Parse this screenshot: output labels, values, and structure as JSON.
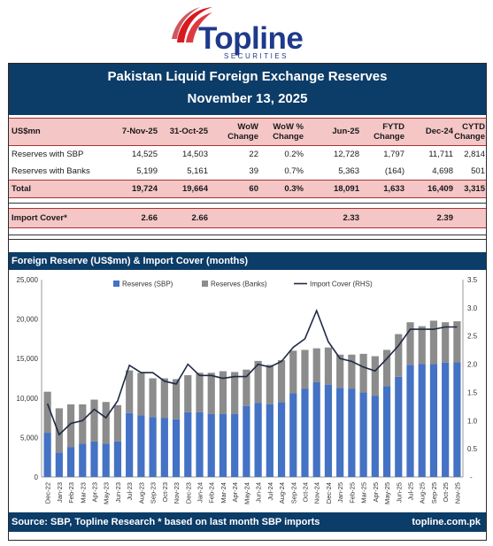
{
  "brand": {
    "name": "Topline",
    "tagline": "SECURITIES"
  },
  "report": {
    "title": "Pakistan Liquid Foreign Exchange Reserves",
    "date": "November 13, 2025"
  },
  "table": {
    "headers": [
      [
        "US$mn"
      ],
      [
        "7-Nov-25"
      ],
      [
        "31-Oct-25"
      ],
      [
        "WoW",
        "Change"
      ],
      [
        "WoW %",
        "Change"
      ],
      [
        "Jun-25"
      ],
      [
        "FYTD",
        "Change"
      ],
      [
        "Dec-24"
      ],
      [
        "CYTD",
        "Change"
      ]
    ],
    "rows": [
      [
        "Reserves with SBP",
        "14,525",
        "14,503",
        "22",
        "0.2%",
        "12,728",
        "1,797",
        "11,711",
        "2,814"
      ],
      [
        "Reserves with Banks",
        "5,199",
        "5,161",
        "39",
        "0.7%",
        "5,363",
        "(164)",
        "4,698",
        "501"
      ],
      [
        "Total",
        "19,724",
        "19,664",
        "60",
        "0.3%",
        "18,091",
        "1,633",
        "16,409",
        "3,315"
      ]
    ],
    "import_cover": [
      "Import Cover*",
      "2.66",
      "2.66",
      "",
      "",
      "2.33",
      "",
      "2.39",
      ""
    ]
  },
  "chart_header": "Foreign Reserve (US$mn) & Import Cover (months)",
  "footer": {
    "source": "Source: SBP, Topline Research * based on last month SBP imports",
    "site": "topline.com.pk"
  },
  "colors": {
    "navy": "#0c3c68",
    "pink": "#f5c6c6",
    "sbp": "#4472c4",
    "banks": "#8c8c8c",
    "line": "#1f2a44"
  },
  "chart_data": {
    "type": "bar",
    "stacked": true,
    "categories": [
      "Dec-22",
      "Jan-23",
      "Feb-23",
      "Mar-23",
      "Apr-23",
      "May-23",
      "Jun-23",
      "Jul-23",
      "Aug-23",
      "Sep-23",
      "Oct-23",
      "Nov-23",
      "Dec-23",
      "Jan-24",
      "Feb-24",
      "Mar-24",
      "Apr-24",
      "May-24",
      "Jun-24",
      "Jul-24",
      "Aug-24",
      "Sep-24",
      "Oct-24",
      "Nov-24",
      "Dec-24",
      "Jan-25",
      "Feb-25",
      "Mar-25",
      "Apr-25",
      "May-25",
      "Jun-25",
      "Jul-25",
      "Aug-25",
      "Sep-25",
      "Oct-25",
      "Nov-25"
    ],
    "tick_labels": [
      "Dec-22",
      "Jan-23",
      "Feb-23",
      "Mar-23",
      "Apr-23",
      "May-23",
      "Jun-23",
      "Jul-23",
      "Aug-23",
      "Sep-23",
      "Oct-23",
      "Nov-23",
      "Dec-23",
      "Jan-24",
      "Feb-24",
      "Mar-24",
      "Apr-24",
      "May-24",
      "Jun-24",
      "Jul-24",
      "Aug-24",
      "Sep-24",
      "Oct-24",
      "Nov-24",
      "Dec-24",
      "Jan-25",
      "Feb-25",
      "Mar-25",
      "Apr-25",
      "May-25",
      "Jun-25",
      "Jul-25",
      "Aug-25",
      "Sep-25",
      "Oct-25",
      "Nov-25"
    ],
    "series": [
      {
        "name": "Reserves (SBP)",
        "kind": "bar",
        "axis": "left",
        "values": [
          5600,
          3100,
          3800,
          4200,
          4500,
          4200,
          4500,
          8100,
          7800,
          7600,
          7500,
          7300,
          8200,
          8200,
          8000,
          8000,
          8000,
          9000,
          9400,
          9200,
          9500,
          10600,
          11200,
          12000,
          11700,
          11300,
          11200,
          10700,
          10300,
          11500,
          12700,
          14200,
          14300,
          14300,
          14500,
          14525
        ]
      },
      {
        "name": "Reserves (Banks)",
        "kind": "bar",
        "axis": "left",
        "values": [
          5200,
          5600,
          5400,
          5000,
          5300,
          5300,
          4600,
          5400,
          5400,
          4900,
          5000,
          5100,
          4700,
          5000,
          5200,
          5400,
          5300,
          4600,
          5300,
          5000,
          5300,
          5400,
          4900,
          4300,
          4700,
          4200,
          4300,
          4900,
          5000,
          4600,
          5400,
          5400,
          4800,
          5500,
          5100,
          5199
        ]
      },
      {
        "name": "Import Cover (RHS)",
        "kind": "line",
        "axis": "right",
        "values": [
          1.3,
          0.75,
          0.95,
          1.0,
          1.2,
          1.05,
          1.35,
          1.98,
          1.85,
          1.85,
          1.7,
          1.65,
          2.0,
          1.8,
          1.8,
          1.75,
          1.78,
          1.78,
          2.0,
          1.95,
          2.05,
          2.3,
          2.45,
          2.95,
          2.4,
          2.1,
          2.05,
          1.95,
          1.88,
          2.1,
          2.33,
          2.62,
          2.62,
          2.62,
          2.66,
          2.66
        ]
      }
    ],
    "y_left": {
      "min": 0,
      "max": 25000,
      "ticks": [
        0,
        5000,
        10000,
        15000,
        20000,
        25000
      ],
      "tick_labels": [
        "0",
        "5,000",
        "10,000",
        "15,000",
        "20,000",
        "25,000"
      ]
    },
    "y_right": {
      "min": 0,
      "max": 3.5,
      "ticks": [
        0.5,
        1.0,
        1.5,
        2.0,
        2.5,
        3.0,
        3.5
      ],
      "tick_labels": [
        "0.5",
        "1.0",
        "1.5",
        "2.0",
        "2.5",
        "3.0",
        "3.5"
      ],
      "zero_label": "-"
    },
    "legend_position": "top-center",
    "grid": false
  }
}
